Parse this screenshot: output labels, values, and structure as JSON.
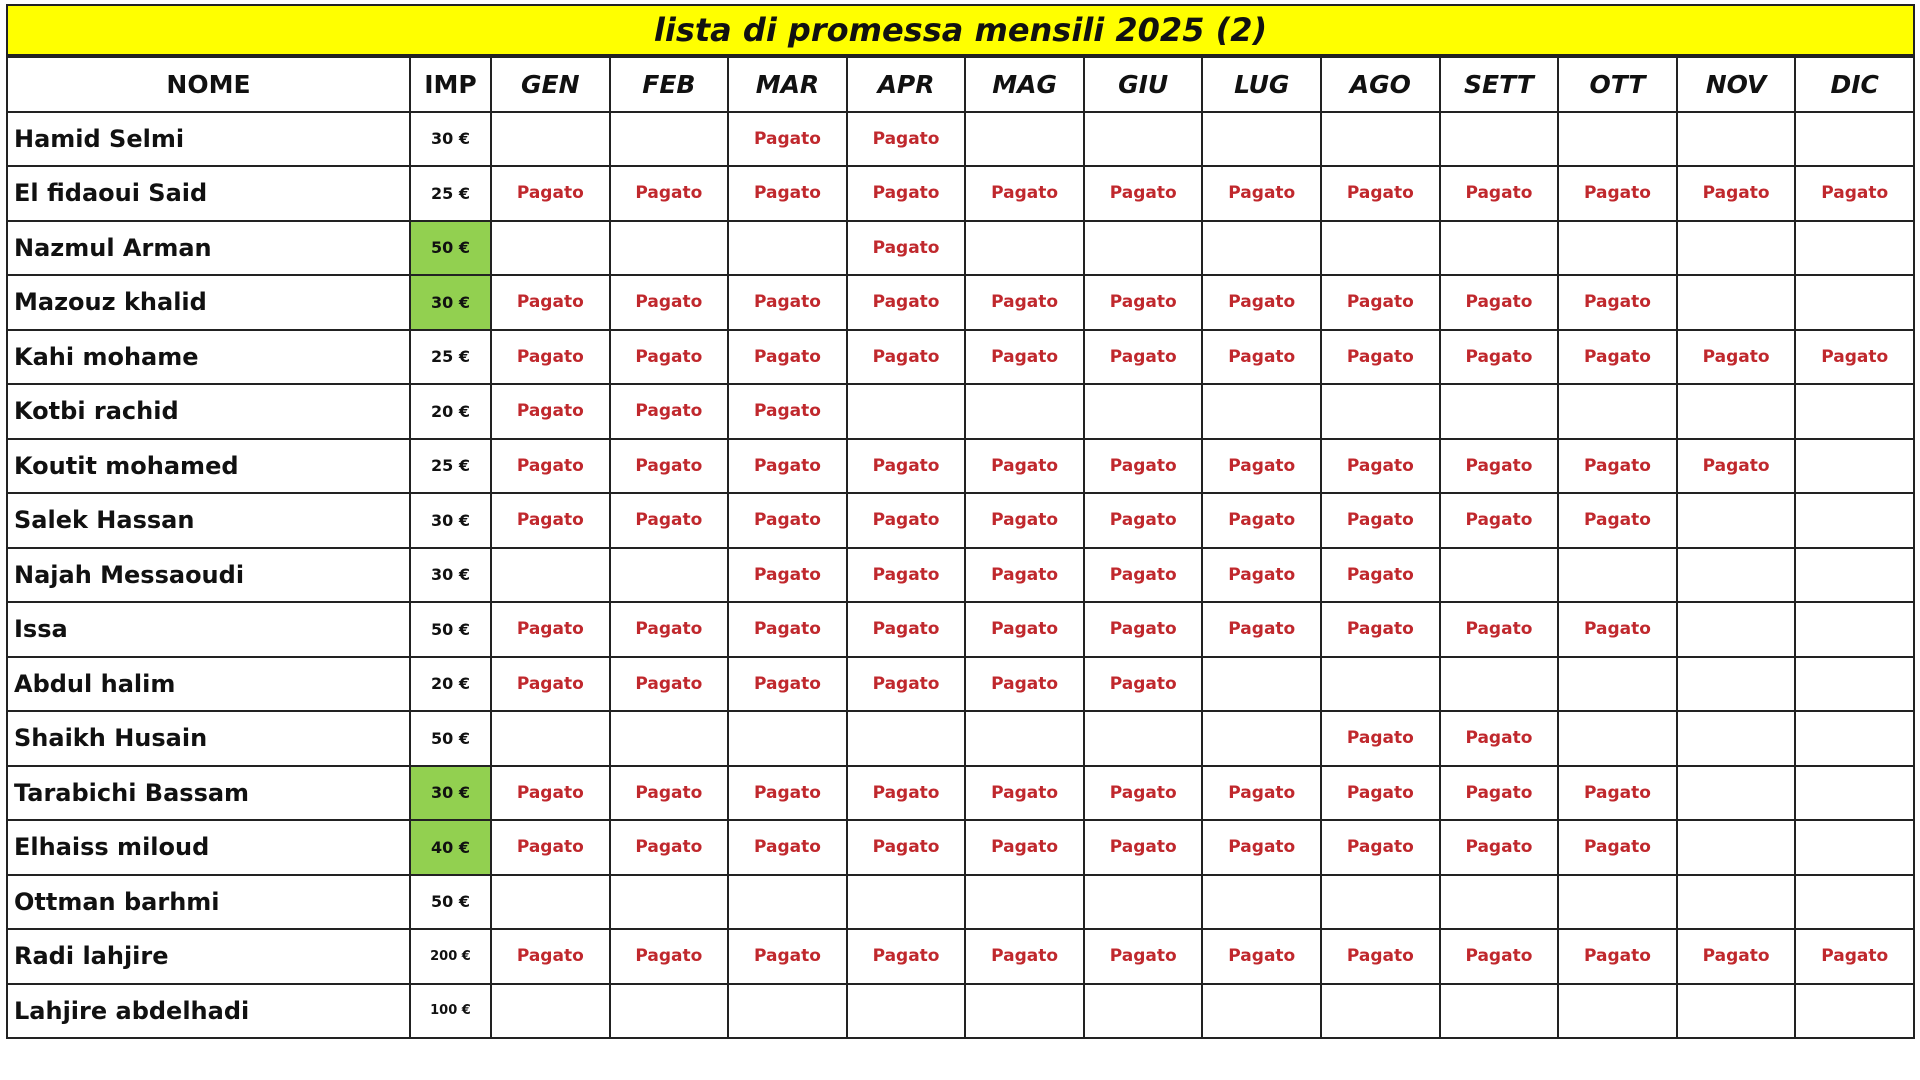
{
  "title": "lista di promessa mensili 2025 (2)",
  "headers": {
    "name": "NOME",
    "amount": "IMP",
    "months": [
      "GEN",
      "FEB",
      "MAR",
      "APR",
      "MAG",
      "GIU",
      "LUG",
      "AGO",
      "SETT",
      "OTT",
      "NOV",
      "DIC"
    ]
  },
  "colors": {
    "title_bg": "#ffff00",
    "highlight": "#92d050",
    "paid_text": "#c0282d"
  },
  "rows": [
    {
      "name": "Hamid Selmi",
      "amount": "30 €",
      "highlight": false,
      "payments": [
        "",
        "",
        "Pagato",
        "Pagato",
        "",
        "",
        "",
        "",
        "",
        "",
        "",
        ""
      ]
    },
    {
      "name": "El fidaoui Said",
      "amount": "25 €",
      "highlight": false,
      "payments": [
        "Pagato",
        "Pagato",
        "Pagato",
        "Pagato",
        "Pagato",
        "Pagato",
        "Pagato",
        "Pagato",
        "Pagato",
        "Pagato",
        "Pagato",
        "Pagato"
      ]
    },
    {
      "name": "Nazmul Arman",
      "amount": "50 €",
      "highlight": true,
      "payments": [
        "",
        "",
        "",
        "Pagato",
        "",
        "",
        "",
        "",
        "",
        "",
        "",
        ""
      ]
    },
    {
      "name": "Mazouz khalid",
      "amount": "30 €",
      "highlight": true,
      "payments": [
        "Pagato",
        "Pagato",
        "Pagato",
        "Pagato",
        "Pagato",
        "Pagato",
        "Pagato",
        "Pagato",
        "Pagato",
        "Pagato",
        "",
        ""
      ]
    },
    {
      "name": "Kahi mohame",
      "amount": "25 €",
      "highlight": false,
      "payments": [
        "Pagato",
        "Pagato",
        "Pagato",
        "Pagato",
        "Pagato",
        "Pagato",
        "Pagato",
        "Pagato",
        "Pagato",
        "Pagato",
        "Pagato",
        "Pagato"
      ]
    },
    {
      "name": "Kotbi rachid",
      "amount": "20 €",
      "highlight": false,
      "payments": [
        "Pagato",
        "Pagato",
        "Pagato",
        "",
        "",
        "",
        "",
        "",
        "",
        "",
        "",
        ""
      ]
    },
    {
      "name": "Koutit mohamed",
      "amount": "25 €",
      "highlight": false,
      "payments": [
        "Pagato",
        "Pagato",
        "Pagato",
        "Pagato",
        "Pagato",
        "Pagato",
        "Pagato",
        "Pagato",
        "Pagato",
        "Pagato",
        "Pagato",
        ""
      ]
    },
    {
      "name": "Salek Hassan",
      "amount": "30 €",
      "highlight": false,
      "payments": [
        "Pagato",
        "Pagato",
        "Pagato",
        "Pagato",
        "Pagato",
        "Pagato",
        "Pagato",
        "Pagato",
        "Pagato",
        "Pagato",
        "",
        ""
      ]
    },
    {
      "name": "Najah Messaoudi",
      "amount": "30 €",
      "highlight": false,
      "payments": [
        "",
        "",
        "Pagato",
        "Pagato",
        "Pagato",
        "Pagato",
        "Pagato",
        "Pagato",
        "",
        "",
        "",
        ""
      ]
    },
    {
      "name": "Issa",
      "amount": "50 €",
      "highlight": false,
      "payments": [
        "Pagato",
        "Pagato",
        "Pagato",
        "Pagato",
        "Pagato",
        "Pagato",
        "Pagato",
        "Pagato",
        "Pagato",
        "Pagato",
        "",
        ""
      ]
    },
    {
      "name": "Abdul halim",
      "amount": "20 €",
      "highlight": false,
      "payments": [
        "Pagato",
        "Pagato",
        "Pagato",
        "Pagato",
        "Pagato",
        "Pagato",
        "",
        "",
        "",
        "",
        "",
        ""
      ]
    },
    {
      "name": "Shaikh Husain",
      "amount": "50 €",
      "highlight": false,
      "payments": [
        "",
        "",
        "",
        "",
        "",
        "",
        "",
        "Pagato",
        "Pagato",
        "",
        "",
        ""
      ]
    },
    {
      "name": "Tarabichi Bassam",
      "amount": "30 €",
      "highlight": true,
      "payments": [
        "Pagato",
        "Pagato",
        "Pagato",
        "Pagato",
        "Pagato",
        "Pagato",
        "Pagato",
        "Pagato",
        "Pagato",
        "Pagato",
        "",
        ""
      ]
    },
    {
      "name": "Elhaiss miloud",
      "amount": "40 €",
      "highlight": true,
      "payments": [
        "Pagato",
        "Pagato",
        "Pagato",
        "Pagato",
        "Pagato",
        "Pagato",
        "Pagato",
        "Pagato",
        "Pagato",
        "Pagato",
        "",
        ""
      ]
    },
    {
      "name": "Ottman barhmi",
      "amount": "50 €",
      "highlight": false,
      "payments": [
        "",
        "",
        "",
        "",
        "",
        "",
        "",
        "",
        "",
        "",
        "",
        ""
      ]
    },
    {
      "name": "Radi lahjire",
      "amount": "200 €",
      "highlight": false,
      "payments": [
        "Pagato",
        "Pagato",
        "Pagato",
        "Pagato",
        "Pagato",
        "Pagato",
        "Pagato",
        "Pagato",
        "Pagato",
        "Pagato",
        "Pagato",
        "Pagato"
      ]
    },
    {
      "name": "Lahjire abdelhadi",
      "amount": "100 €",
      "highlight": false,
      "payments": [
        "",
        "",
        "",
        "",
        "",
        "",
        "",
        "",
        "",
        "",
        "",
        ""
      ]
    }
  ]
}
